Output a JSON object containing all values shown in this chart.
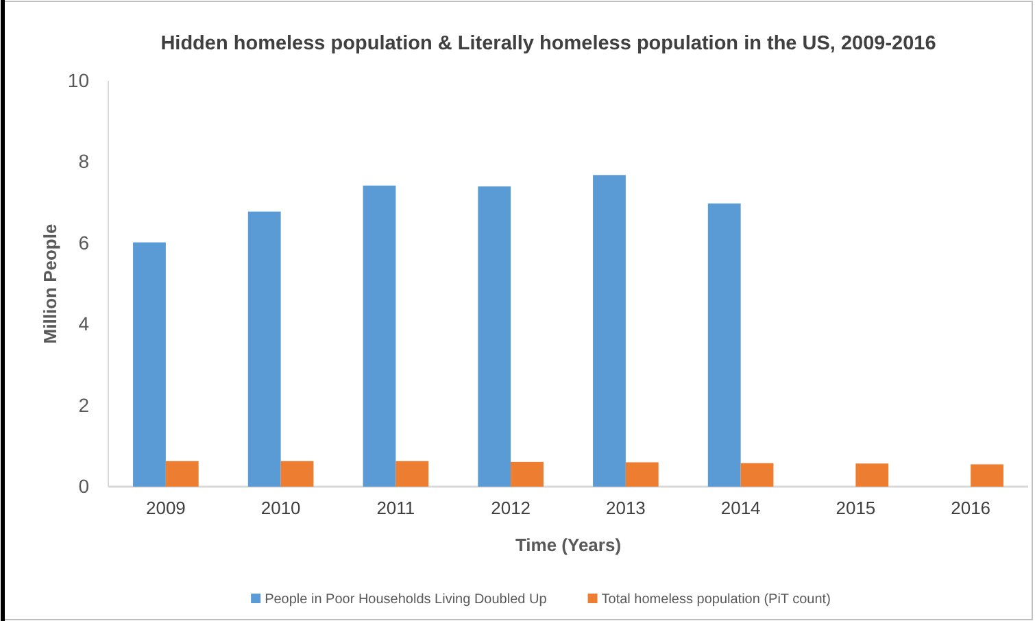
{
  "chart_data": {
    "type": "bar",
    "title": "Hidden homeless population & Literally homeless population in the US, 2009-2016",
    "xlabel": "Time (Years)",
    "ylabel": "Million People",
    "categories": [
      "2009",
      "2010",
      "2011",
      "2012",
      "2013",
      "2014",
      "2015",
      "2016"
    ],
    "series": [
      {
        "name": "People in Poor Households Living Doubled Up",
        "color": "#5b9bd5",
        "values": [
          6.02,
          6.78,
          7.42,
          7.4,
          7.68,
          6.98,
          null,
          null
        ]
      },
      {
        "name": "Total homeless population (PiT count)",
        "color": "#ed7d31",
        "values": [
          0.63,
          0.63,
          0.63,
          0.61,
          0.6,
          0.58,
          0.57,
          0.55
        ]
      }
    ],
    "ylim": [
      0,
      10
    ],
    "yticks": [
      0,
      2,
      4,
      6,
      8,
      10
    ],
    "grid": false,
    "legend": "bottom"
  }
}
